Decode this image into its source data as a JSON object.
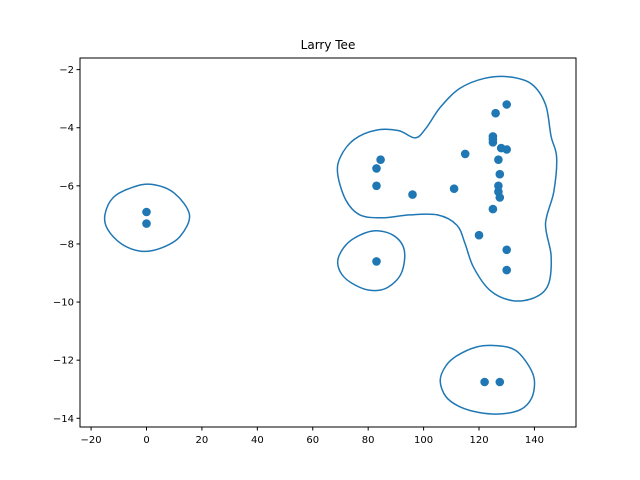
{
  "chart_data": {
    "type": "scatter",
    "title": "Larry Tee",
    "xlabel": "",
    "ylabel": "",
    "xlim": [
      -24,
      155
    ],
    "ylim": [
      -14.3,
      -1.6
    ],
    "xticks": [
      -20,
      0,
      20,
      40,
      60,
      80,
      100,
      120,
      140
    ],
    "yticks": [
      -14,
      -12,
      -10,
      -8,
      -6,
      -4,
      -2
    ],
    "grid": false,
    "colors": {
      "points": "#1f77b4",
      "contours": "#1f77b4"
    },
    "points": [
      {
        "x": 0,
        "y": -6.9
      },
      {
        "x": 0,
        "y": -7.3
      },
      {
        "x": 83,
        "y": -8.6
      },
      {
        "x": 83,
        "y": -5.4
      },
      {
        "x": 83,
        "y": -6.0
      },
      {
        "x": 84.5,
        "y": -5.1
      },
      {
        "x": 96,
        "y": -6.3
      },
      {
        "x": 111,
        "y": -6.1
      },
      {
        "x": 115,
        "y": -4.9
      },
      {
        "x": 120,
        "y": -7.7
      },
      {
        "x": 125,
        "y": -4.3
      },
      {
        "x": 125,
        "y": -4.4
      },
      {
        "x": 125,
        "y": -4.5
      },
      {
        "x": 125,
        "y": -6.8
      },
      {
        "x": 126,
        "y": -3.5
      },
      {
        "x": 127,
        "y": -5.1
      },
      {
        "x": 127,
        "y": -6.0
      },
      {
        "x": 127,
        "y": -6.2
      },
      {
        "x": 127.5,
        "y": -5.6
      },
      {
        "x": 127.5,
        "y": -6.4
      },
      {
        "x": 128,
        "y": -4.7
      },
      {
        "x": 130,
        "y": -3.2
      },
      {
        "x": 130,
        "y": -4.75
      },
      {
        "x": 130,
        "y": -8.2
      },
      {
        "x": 130,
        "y": -8.9
      },
      {
        "x": 122,
        "y": -12.75
      },
      {
        "x": 127.5,
        "y": -12.75
      }
    ],
    "contours": [
      [
        [
          -15,
          -7.0
        ],
        [
          -12,
          -6.4
        ],
        [
          -5,
          -6.05
        ],
        [
          2,
          -5.95
        ],
        [
          10,
          -6.25
        ],
        [
          15.5,
          -7.0
        ],
        [
          12,
          -7.75
        ],
        [
          5,
          -8.15
        ],
        [
          -2,
          -8.25
        ],
        [
          -9,
          -8.0
        ],
        [
          -14,
          -7.5
        ]
      ],
      [
        [
          69,
          -8.6
        ],
        [
          71,
          -8.15
        ],
        [
          75,
          -7.8
        ],
        [
          82,
          -7.55
        ],
        [
          89,
          -7.7
        ],
        [
          93,
          -8.2
        ],
        [
          92,
          -9.0
        ],
        [
          87,
          -9.5
        ],
        [
          81,
          -9.6
        ],
        [
          75,
          -9.4
        ],
        [
          70.5,
          -9.05
        ]
      ],
      [
        [
          69,
          -5.6
        ],
        [
          70,
          -5.0
        ],
        [
          75,
          -4.4
        ],
        [
          83,
          -4.08
        ],
        [
          91,
          -4.1
        ],
        [
          97,
          -4.35
        ],
        [
          101,
          -4.0
        ],
        [
          106,
          -3.3
        ],
        [
          113,
          -2.65
        ],
        [
          122,
          -2.3
        ],
        [
          131,
          -2.25
        ],
        [
          139,
          -2.5
        ],
        [
          144,
          -3.2
        ],
        [
          146,
          -4.3
        ],
        [
          148,
          -5.0
        ],
        [
          147,
          -6.2
        ],
        [
          144,
          -7.3
        ],
        [
          146,
          -8.4
        ],
        [
          145,
          -9.4
        ],
        [
          140,
          -9.85
        ],
        [
          132,
          -9.95
        ],
        [
          124,
          -9.6
        ],
        [
          118,
          -8.8
        ],
        [
          115,
          -8.0
        ],
        [
          112,
          -7.35
        ],
        [
          105,
          -7.0
        ],
        [
          95,
          -7.0
        ],
        [
          85,
          -7.1
        ],
        [
          77,
          -7.0
        ],
        [
          72,
          -6.5
        ]
      ],
      [
        [
          106,
          -12.7
        ],
        [
          108,
          -12.2
        ],
        [
          112,
          -11.85
        ],
        [
          119,
          -11.55
        ],
        [
          126,
          -11.5
        ],
        [
          133,
          -11.65
        ],
        [
          138,
          -12.2
        ],
        [
          140,
          -12.7
        ],
        [
          139,
          -13.3
        ],
        [
          135,
          -13.7
        ],
        [
          128,
          -13.85
        ],
        [
          120,
          -13.8
        ],
        [
          113,
          -13.6
        ],
        [
          108,
          -13.25
        ]
      ]
    ]
  }
}
